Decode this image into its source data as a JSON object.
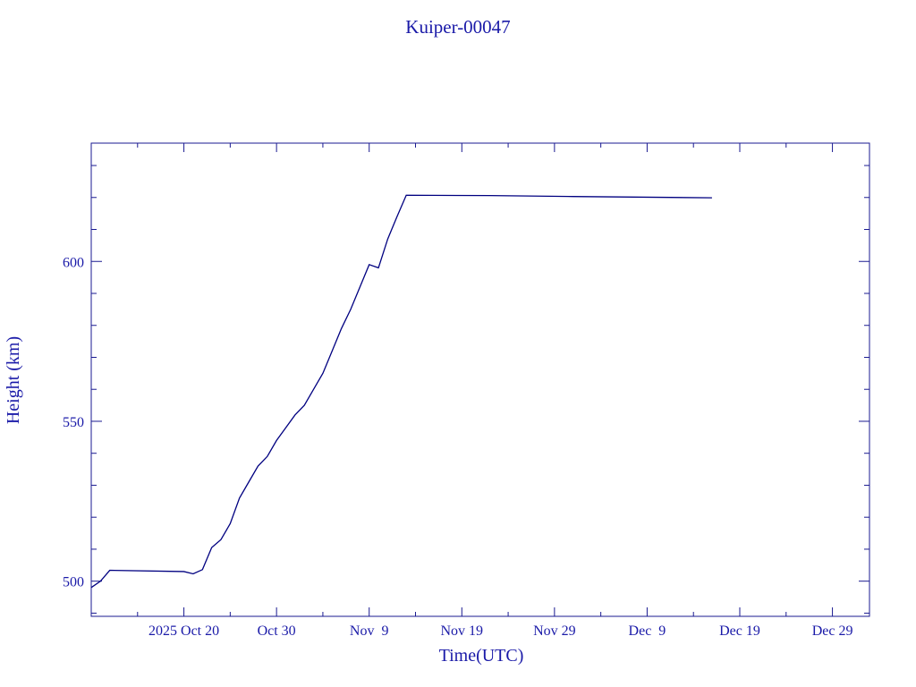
{
  "chart_data": {
    "type": "line",
    "title": "Kuiper-00047",
    "x_label": "Time(UTC)",
    "y_label": "Height (km)",
    "color": "#000080",
    "x": [
      "2025-10-10",
      "2025-10-11",
      "2025-10-12",
      "2025-10-20",
      "2025-10-21",
      "2025-10-22",
      "2025-10-23",
      "2025-10-24",
      "2025-10-25",
      "2025-10-26",
      "2025-10-27",
      "2025-10-28",
      "2025-10-29",
      "2025-10-30",
      "2025-10-31",
      "2025-11-01",
      "2025-11-02",
      "2025-11-03",
      "2025-11-04",
      "2025-11-05",
      "2025-11-06",
      "2025-11-07",
      "2025-11-08",
      "2025-11-09",
      "2025-11-10",
      "2025-11-11",
      "2025-11-12",
      "2025-11-13",
      "2025-11-22",
      "2025-12-01",
      "2025-12-16"
    ],
    "values": [
      498,
      500,
      503.4,
      503,
      502.3,
      503.6,
      510.5,
      513,
      518,
      526,
      531,
      536,
      539,
      544,
      548,
      552,
      555,
      560,
      565,
      572,
      579,
      585,
      592,
      599,
      598,
      607,
      614,
      620.7,
      620.6,
      620.3,
      619.9
    ],
    "xlim": [
      "2025-10-10",
      "2026-01-02"
    ],
    "xticks": [
      {
        "value": "2025-10-20",
        "label": "2025 Oct 20"
      },
      {
        "value": "2025-10-30",
        "label": "Oct 30"
      },
      {
        "value": "2025-11-09",
        "label": "Nov  9"
      },
      {
        "value": "2025-11-19",
        "label": "Nov 19"
      },
      {
        "value": "2025-11-29",
        "label": "Nov 29"
      },
      {
        "value": "2025-12-09",
        "label": "Dec  9"
      },
      {
        "value": "2025-12-19",
        "label": "Dec 19"
      },
      {
        "value": "2025-12-29",
        "label": "Dec 29"
      }
    ],
    "xminorticks": [
      "2025-10-15",
      "2025-10-25",
      "2025-11-04",
      "2025-11-14",
      "2025-11-24",
      "2025-12-04",
      "2025-12-14",
      "2025-12-24"
    ],
    "ylim": [
      489,
      637
    ],
    "yticks": [
      500,
      550,
      600
    ],
    "yminorticks": [
      490,
      510,
      520,
      530,
      540,
      560,
      570,
      580,
      590,
      610,
      620,
      630
    ]
  }
}
